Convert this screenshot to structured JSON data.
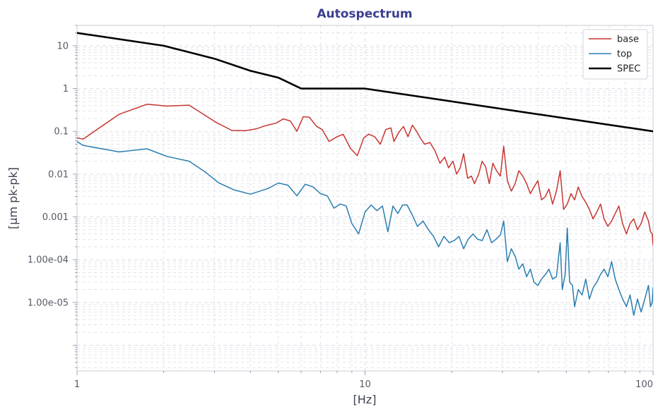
{
  "chart_data": {
    "type": "line",
    "title": "Autospectrum",
    "xlabel": "[Hz]",
    "ylabel": "[µm pk-pk]",
    "xscale": "log",
    "yscale": "log",
    "xlim": [
      1,
      100
    ],
    "ylim": [
      2.5e-07,
      30
    ],
    "x_ticks": [
      {
        "value": 1,
        "label": "1"
      },
      {
        "value": 10,
        "label": "10"
      },
      {
        "value": 100,
        "label": "100"
      }
    ],
    "y_ticks": [
      {
        "value": 10,
        "label": "10"
      },
      {
        "value": 1,
        "label": "1"
      },
      {
        "value": 0.1,
        "label": "0.1"
      },
      {
        "value": 0.01,
        "label": "0.01"
      },
      {
        "value": 0.001,
        "label": "0.001"
      },
      {
        "value": 0.0001,
        "label": "1.00e-04"
      },
      {
        "value": 1e-05,
        "label": "1.00e-05"
      }
    ],
    "grid": true,
    "legend_position": "top-right",
    "colors": {
      "title": "#3a3f8f",
      "base": "#c8352f",
      "top": "#2a7db0",
      "spec": "#000000",
      "grid": "#dcdfe6",
      "axis": "#c8ccd6"
    },
    "series": [
      {
        "name": "base",
        "color": "#c8352f",
        "points": [
          [
            1.0,
            0.07
          ],
          [
            1.05,
            0.066
          ],
          [
            1.4,
            0.25
          ],
          [
            1.75,
            0.43
          ],
          [
            2.05,
            0.39
          ],
          [
            2.45,
            0.41
          ],
          [
            3.05,
            0.16
          ],
          [
            3.45,
            0.105
          ],
          [
            3.85,
            0.104
          ],
          [
            4.2,
            0.115
          ],
          [
            4.5,
            0.135
          ],
          [
            4.9,
            0.155
          ],
          [
            5.2,
            0.195
          ],
          [
            5.5,
            0.175
          ],
          [
            5.8,
            0.1
          ],
          [
            6.1,
            0.22
          ],
          [
            6.4,
            0.215
          ],
          [
            6.8,
            0.13
          ],
          [
            7.1,
            0.11
          ],
          [
            7.5,
            0.058
          ],
          [
            8.0,
            0.075
          ],
          [
            8.4,
            0.085
          ],
          [
            8.9,
            0.04
          ],
          [
            9.4,
            0.027
          ],
          [
            9.9,
            0.07
          ],
          [
            10.3,
            0.086
          ],
          [
            10.8,
            0.075
          ],
          [
            11.3,
            0.05
          ],
          [
            11.8,
            0.11
          ],
          [
            12.3,
            0.12
          ],
          [
            12.6,
            0.058
          ],
          [
            13.1,
            0.095
          ],
          [
            13.6,
            0.13
          ],
          [
            14.1,
            0.075
          ],
          [
            14.6,
            0.14
          ],
          [
            15.1,
            0.1
          ],
          [
            15.6,
            0.068
          ],
          [
            16.1,
            0.05
          ],
          [
            16.8,
            0.055
          ],
          [
            17.5,
            0.035
          ],
          [
            18.2,
            0.018
          ],
          [
            18.9,
            0.025
          ],
          [
            19.5,
            0.014
          ],
          [
            20.2,
            0.02
          ],
          [
            20.8,
            0.01
          ],
          [
            21.4,
            0.014
          ],
          [
            22.0,
            0.03
          ],
          [
            22.7,
            0.008
          ],
          [
            23.4,
            0.009
          ],
          [
            24.0,
            0.006
          ],
          [
            24.8,
            0.01
          ],
          [
            25.5,
            0.02
          ],
          [
            26.2,
            0.015
          ],
          [
            27.0,
            0.006
          ],
          [
            27.8,
            0.018
          ],
          [
            28.6,
            0.012
          ],
          [
            29.5,
            0.009
          ],
          [
            30.3,
            0.045
          ],
          [
            31.2,
            0.007
          ],
          [
            32.2,
            0.004
          ],
          [
            33.2,
            0.006
          ],
          [
            34.2,
            0.012
          ],
          [
            35.3,
            0.009
          ],
          [
            36.4,
            0.006
          ],
          [
            37.5,
            0.0035
          ],
          [
            38.6,
            0.005
          ],
          [
            39.8,
            0.007
          ],
          [
            41.0,
            0.0025
          ],
          [
            42.3,
            0.003
          ],
          [
            43.5,
            0.0045
          ],
          [
            44.8,
            0.002
          ],
          [
            46.2,
            0.004
          ],
          [
            47.6,
            0.012
          ],
          [
            48.9,
            0.0015
          ],
          [
            50.4,
            0.002
          ],
          [
            51.9,
            0.0035
          ],
          [
            53.4,
            0.0025
          ],
          [
            55.0,
            0.005
          ],
          [
            56.7,
            0.003
          ],
          [
            58.4,
            0.0022
          ],
          [
            60.1,
            0.0015
          ],
          [
            61.9,
            0.0009
          ],
          [
            63.8,
            0.0013
          ],
          [
            65.7,
            0.002
          ],
          [
            67.6,
            0.0009
          ],
          [
            69.7,
            0.0006
          ],
          [
            71.8,
            0.0008
          ],
          [
            73.9,
            0.0012
          ],
          [
            76.1,
            0.0018
          ],
          [
            78.4,
            0.0007
          ],
          [
            80.8,
            0.0004
          ],
          [
            83.2,
            0.0007
          ],
          [
            85.7,
            0.0009
          ],
          [
            88.3,
            0.0005
          ],
          [
            90.9,
            0.0007
          ],
          [
            93.6,
            0.0013
          ],
          [
            96.4,
            0.0008
          ],
          [
            98.0,
            0.00045
          ],
          [
            99.3,
            0.0004
          ],
          [
            100.0,
            0.00022
          ]
        ]
      },
      {
        "name": "top",
        "color": "#2a7db0",
        "points": [
          [
            1.0,
            0.058
          ],
          [
            1.05,
            0.047
          ],
          [
            1.4,
            0.033
          ],
          [
            1.75,
            0.039
          ],
          [
            2.05,
            0.026
          ],
          [
            2.45,
            0.02
          ],
          [
            2.8,
            0.011
          ],
          [
            3.1,
            0.0063
          ],
          [
            3.5,
            0.0043
          ],
          [
            4.0,
            0.0034
          ],
          [
            4.6,
            0.0046
          ],
          [
            5.0,
            0.0062
          ],
          [
            5.4,
            0.0055
          ],
          [
            5.8,
            0.0031
          ],
          [
            6.2,
            0.0058
          ],
          [
            6.6,
            0.005
          ],
          [
            7.0,
            0.0035
          ],
          [
            7.4,
            0.0031
          ],
          [
            7.8,
            0.0016
          ],
          [
            8.2,
            0.002
          ],
          [
            8.6,
            0.0018
          ],
          [
            9.0,
            0.0007
          ],
          [
            9.5,
            0.0004
          ],
          [
            10.0,
            0.0013
          ],
          [
            10.5,
            0.0019
          ],
          [
            11.0,
            0.0014
          ],
          [
            11.5,
            0.0018
          ],
          [
            12.0,
            0.00045
          ],
          [
            12.5,
            0.0018
          ],
          [
            13.0,
            0.0012
          ],
          [
            13.5,
            0.0019
          ],
          [
            14.0,
            0.0019
          ],
          [
            14.6,
            0.0011
          ],
          [
            15.2,
            0.0006
          ],
          [
            15.9,
            0.0008
          ],
          [
            16.6,
            0.0005
          ],
          [
            17.3,
            0.00035
          ],
          [
            18.0,
            0.0002
          ],
          [
            18.8,
            0.00035
          ],
          [
            19.6,
            0.00025
          ],
          [
            20.4,
            0.00028
          ],
          [
            21.2,
            0.00035
          ],
          [
            22.0,
            0.00018
          ],
          [
            22.8,
            0.0003
          ],
          [
            23.7,
            0.0004
          ],
          [
            24.6,
            0.0003
          ],
          [
            25.5,
            0.00028
          ],
          [
            26.5,
            0.0005
          ],
          [
            27.5,
            0.00025
          ],
          [
            28.5,
            0.0003
          ],
          [
            29.5,
            0.00038
          ],
          [
            30.3,
            0.0008
          ],
          [
            31.2,
            9e-05
          ],
          [
            32.2,
            0.00018
          ],
          [
            33.2,
            0.00012
          ],
          [
            34.2,
            6e-05
          ],
          [
            35.3,
            8e-05
          ],
          [
            36.4,
            4e-05
          ],
          [
            37.5,
            6e-05
          ],
          [
            38.6,
            3e-05
          ],
          [
            39.8,
            2.5e-05
          ],
          [
            41.0,
            3.5e-05
          ],
          [
            42.3,
            4.5e-05
          ],
          [
            43.5,
            6e-05
          ],
          [
            44.8,
            3.5e-05
          ],
          [
            46.2,
            4e-05
          ],
          [
            47.6,
            0.00025
          ],
          [
            48.4,
            2e-05
          ],
          [
            49.5,
            4.5e-05
          ],
          [
            50.4,
            0.00055
          ],
          [
            51.3,
            3e-05
          ],
          [
            52.5,
            2.5e-05
          ],
          [
            53.4,
            8e-06
          ],
          [
            55.0,
            2e-05
          ],
          [
            56.7,
            1.5e-05
          ],
          [
            58.4,
            3.5e-05
          ],
          [
            60.1,
            1.2e-05
          ],
          [
            61.9,
            2.2e-05
          ],
          [
            63.8,
            3e-05
          ],
          [
            65.7,
            4.5e-05
          ],
          [
            67.6,
            6e-05
          ],
          [
            69.7,
            4e-05
          ],
          [
            71.8,
            9e-05
          ],
          [
            73.9,
            3.5e-05
          ],
          [
            76.1,
            2e-05
          ],
          [
            78.4,
            1.2e-05
          ],
          [
            80.8,
            8e-06
          ],
          [
            83.2,
            1.5e-05
          ],
          [
            85.7,
            5e-06
          ],
          [
            88.3,
            1.2e-05
          ],
          [
            90.9,
            6e-06
          ],
          [
            93.6,
            1.2e-05
          ],
          [
            96.4,
            2.5e-05
          ],
          [
            98.0,
            8e-06
          ],
          [
            99.3,
            1e-05
          ],
          [
            100.0,
            2.2e-05
          ]
        ]
      },
      {
        "name": "SPEC",
        "color": "#000000",
        "points": [
          [
            1,
            20
          ],
          [
            2,
            10
          ],
          [
            3,
            5
          ],
          [
            4,
            2.6
          ],
          [
            5,
            1.8
          ],
          [
            6,
            1.0
          ],
          [
            10,
            1.0
          ],
          [
            100,
            0.1
          ]
        ]
      }
    ]
  }
}
